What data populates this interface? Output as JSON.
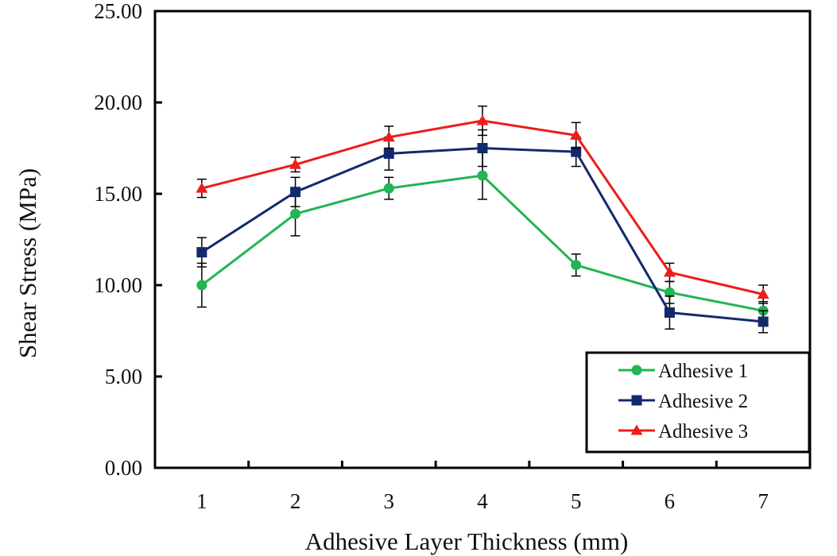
{
  "chart_data": {
    "type": "line",
    "title": "",
    "xlabel": "Adhesive Layer Thickness (mm)",
    "ylabel": "Shear Stress (MPa)",
    "x": [
      1,
      2,
      3,
      4,
      5,
      6,
      7
    ],
    "xlim": [
      0.5,
      7.5
    ],
    "ylim": [
      0,
      25
    ],
    "yticks": [
      "0.00",
      "5.00",
      "10.00",
      "15.00",
      "20.00",
      "25.00"
    ],
    "xticks": [
      "1",
      "2",
      "3",
      "4",
      "5",
      "6",
      "7"
    ],
    "grid": false,
    "legend_position": "bottom-right",
    "series": [
      {
        "name": "Adhesive 1",
        "color": "#22b455",
        "marker": "circle",
        "values": [
          10.0,
          13.9,
          15.3,
          16.0,
          11.1,
          9.6,
          8.6
        ],
        "errors": [
          1.2,
          1.2,
          0.6,
          1.3,
          0.6,
          0.6,
          0.5
        ]
      },
      {
        "name": "Adhesive 2",
        "color": "#13296e",
        "marker": "square",
        "values": [
          11.8,
          15.1,
          17.2,
          17.5,
          17.3,
          8.5,
          8.0
        ],
        "errors": [
          0.8,
          0.8,
          0.9,
          1.0,
          0.8,
          0.9,
          0.6
        ]
      },
      {
        "name": "Adhesive 3",
        "color": "#ee1c1c",
        "marker": "triangle",
        "values": [
          15.3,
          16.6,
          18.1,
          19.0,
          18.2,
          10.7,
          9.5
        ],
        "errors": [
          0.5,
          0.4,
          0.6,
          0.8,
          0.7,
          0.5,
          0.5
        ]
      }
    ]
  }
}
